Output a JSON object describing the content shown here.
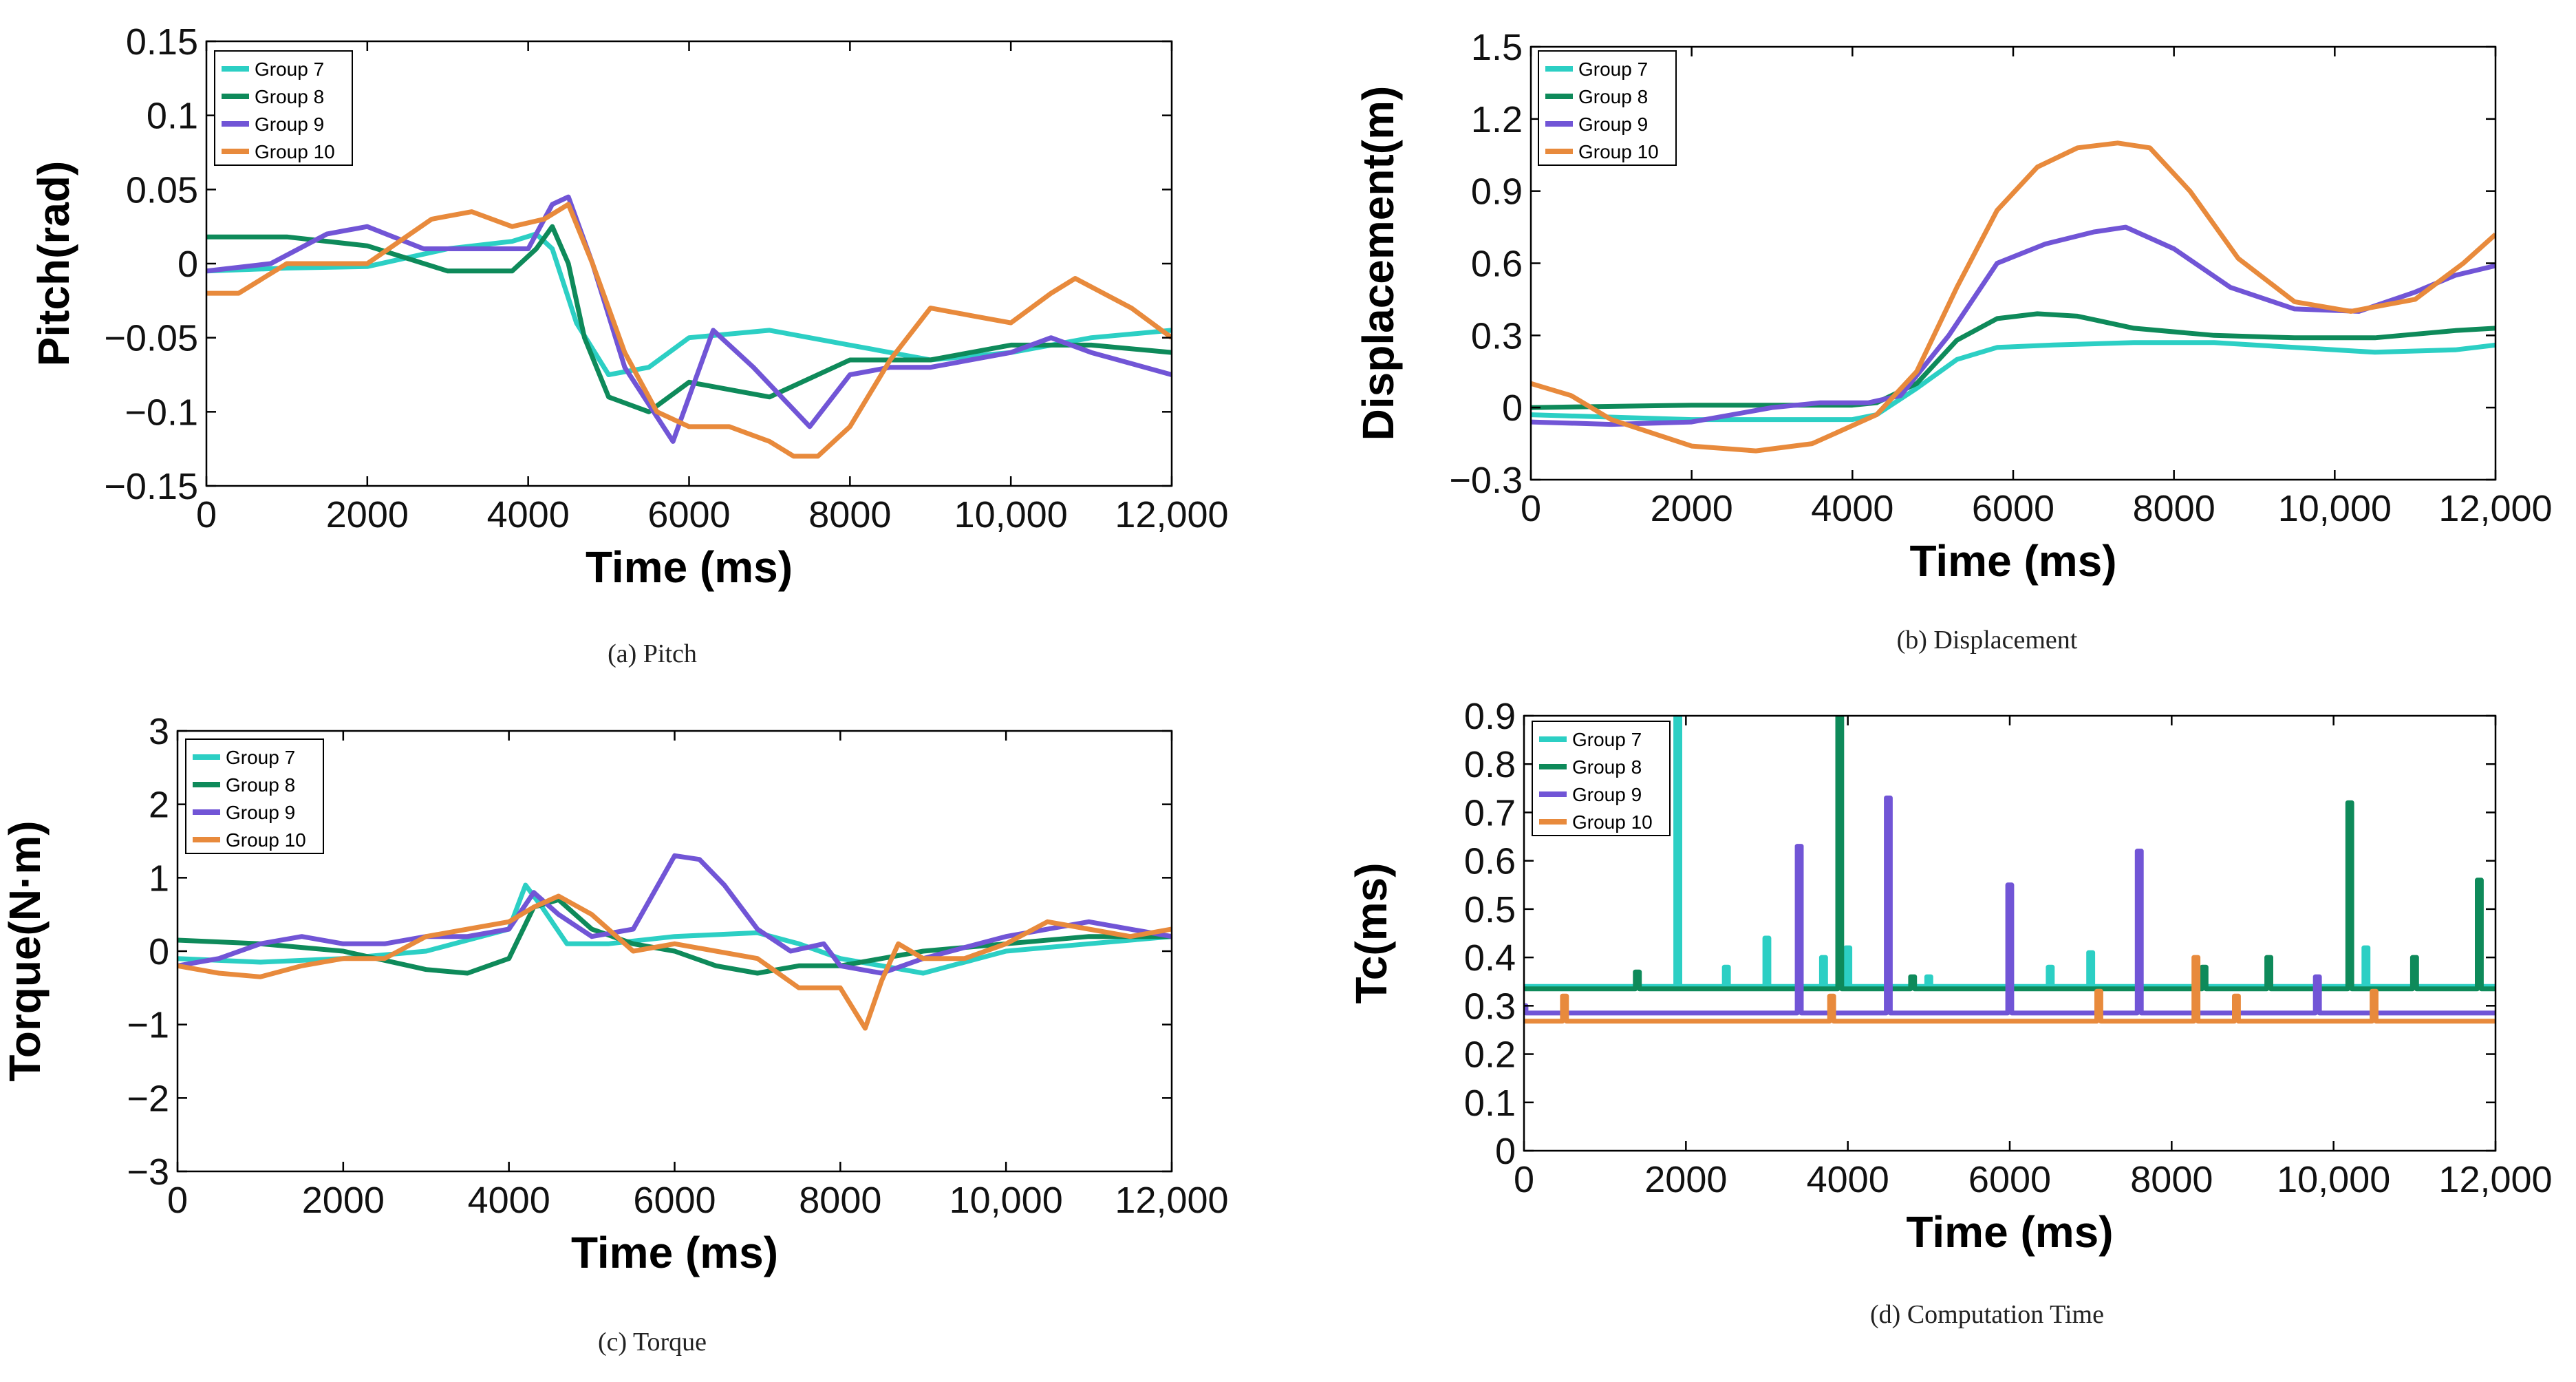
{
  "colors": {
    "Group 7": "#2ccfc4",
    "Group 8": "#0e8a5a",
    "Group 9": "#7155d6",
    "Group 10": "#e88a3c"
  },
  "chart_data": [
    {
      "id": "pitch",
      "type": "line",
      "caption": "(a) Pitch",
      "xlabel": "Time (ms)",
      "ylabel": "Pitch(rad)",
      "xlim": [
        0,
        12000
      ],
      "ylim": [
        -0.15,
        0.15
      ],
      "xticks": [
        0,
        2000,
        4000,
        6000,
        8000,
        10000,
        12000
      ],
      "xtick_labels": [
        "0",
        "2000",
        "4000",
        "6000",
        "8000",
        "10,000",
        "12,000"
      ],
      "yticks": [
        -0.15,
        -0.1,
        -0.05,
        0,
        0.05,
        0.1,
        0.15
      ],
      "ytick_labels": [
        "−0.15",
        "−0.1",
        "−0.05",
        "0",
        "0.05",
        "0.1",
        "0.15"
      ],
      "legend": [
        "Group 7",
        "Group 8",
        "Group 9",
        "Group 10"
      ],
      "series": [
        {
          "name": "Group 7",
          "x": [
            0,
            1000,
            2000,
            3000,
            3800,
            4100,
            4300,
            4600,
            5000,
            5500,
            6000,
            7000,
            8000,
            9000,
            10000,
            11000,
            12000
          ],
          "y": [
            -0.005,
            -0.003,
            -0.002,
            0.01,
            0.015,
            0.02,
            0.01,
            -0.04,
            -0.075,
            -0.07,
            -0.05,
            -0.045,
            -0.055,
            -0.065,
            -0.06,
            -0.05,
            -0.045
          ]
        },
        {
          "name": "Group 8",
          "x": [
            0,
            1000,
            2000,
            3000,
            3800,
            4100,
            4300,
            4500,
            4700,
            5000,
            5500,
            6000,
            7000,
            8000,
            9000,
            10000,
            11000,
            12000
          ],
          "y": [
            0.018,
            0.018,
            0.012,
            -0.005,
            -0.005,
            0.01,
            0.025,
            0.0,
            -0.05,
            -0.09,
            -0.1,
            -0.08,
            -0.09,
            -0.065,
            -0.065,
            -0.055,
            -0.055,
            -0.06
          ]
        },
        {
          "name": "Group 9",
          "x": [
            0,
            800,
            1500,
            2000,
            2700,
            3200,
            4000,
            4300,
            4500,
            4800,
            5200,
            5800,
            6300,
            6800,
            7500,
            8000,
            8500,
            9000,
            10000,
            10500,
            11000,
            12000
          ],
          "y": [
            -0.005,
            0.0,
            0.02,
            0.025,
            0.01,
            0.01,
            0.01,
            0.04,
            0.045,
            0.0,
            -0.07,
            -0.12,
            -0.045,
            -0.07,
            -0.11,
            -0.075,
            -0.07,
            -0.07,
            -0.06,
            -0.05,
            -0.06,
            -0.075
          ]
        },
        {
          "name": "Group 10",
          "x": [
            0,
            400,
            1000,
            2000,
            2800,
            3300,
            3800,
            4200,
            4500,
            4800,
            5200,
            5600,
            6000,
            6500,
            7000,
            7300,
            7600,
            8000,
            8500,
            9000,
            9500,
            10000,
            10500,
            10800,
            11500,
            12000
          ],
          "y": [
            -0.02,
            -0.02,
            0.0,
            0.0,
            0.03,
            0.035,
            0.025,
            0.03,
            0.04,
            0.0,
            -0.06,
            -0.1,
            -0.11,
            -0.11,
            -0.12,
            -0.13,
            -0.13,
            -0.11,
            -0.065,
            -0.03,
            -0.035,
            -0.04,
            -0.02,
            -0.01,
            -0.03,
            -0.05
          ]
        }
      ]
    },
    {
      "id": "displacement",
      "type": "line",
      "caption": "(b) Displacement",
      "xlabel": "Time (ms)",
      "ylabel": "Displacement(m)",
      "xlim": [
        0,
        12000
      ],
      "ylim": [
        -0.3,
        1.5
      ],
      "xticks": [
        0,
        2000,
        4000,
        6000,
        8000,
        10000,
        12000
      ],
      "xtick_labels": [
        "0",
        "2000",
        "4000",
        "6000",
        "8000",
        "10,000",
        "12,000"
      ],
      "yticks": [
        -0.3,
        0,
        0.3,
        0.6,
        0.9,
        1.2,
        1.5
      ],
      "ytick_labels": [
        "−0.3",
        "0",
        "0.3",
        "0.6",
        "0.9",
        "1.2",
        "1.5"
      ],
      "legend": [
        "Group 7",
        "Group 8",
        "Group 9",
        "Group 10"
      ],
      "series": [
        {
          "name": "Group 7",
          "x": [
            0,
            2000,
            4000,
            4300,
            4800,
            5300,
            5800,
            6500,
            7500,
            8500,
            9500,
            10500,
            11500,
            12000
          ],
          "y": [
            -0.03,
            -0.05,
            -0.05,
            -0.03,
            0.08,
            0.2,
            0.25,
            0.26,
            0.27,
            0.27,
            0.25,
            0.23,
            0.24,
            0.26
          ]
        },
        {
          "name": "Group 8",
          "x": [
            0,
            2000,
            4000,
            4300,
            4800,
            5300,
            5800,
            6300,
            6800,
            7500,
            8500,
            9500,
            10500,
            11500,
            12000
          ],
          "y": [
            0.0,
            0.01,
            0.01,
            0.02,
            0.1,
            0.28,
            0.37,
            0.39,
            0.38,
            0.33,
            0.3,
            0.29,
            0.29,
            0.32,
            0.33
          ]
        },
        {
          "name": "Group 9",
          "x": [
            0,
            1000,
            2000,
            3000,
            3600,
            4200,
            4600,
            5200,
            5800,
            6400,
            7000,
            7400,
            8000,
            8700,
            9500,
            10300,
            11000,
            11500,
            12000
          ],
          "y": [
            -0.06,
            -0.07,
            -0.06,
            0.0,
            0.02,
            0.02,
            0.05,
            0.3,
            0.6,
            0.68,
            0.73,
            0.75,
            0.66,
            0.5,
            0.41,
            0.4,
            0.48,
            0.55,
            0.59
          ]
        },
        {
          "name": "Group 10",
          "x": [
            0,
            500,
            1000,
            2000,
            2800,
            3500,
            4300,
            4800,
            5300,
            5800,
            6300,
            6800,
            7300,
            7700,
            8200,
            8800,
            9500,
            10200,
            11000,
            11600,
            12000
          ],
          "y": [
            0.1,
            0.05,
            -0.05,
            -0.16,
            -0.18,
            -0.15,
            -0.03,
            0.15,
            0.5,
            0.82,
            1.0,
            1.08,
            1.1,
            1.08,
            0.9,
            0.62,
            0.44,
            0.4,
            0.45,
            0.6,
            0.72
          ]
        }
      ]
    },
    {
      "id": "torque",
      "type": "line",
      "caption": "(c) Torque",
      "xlabel": "Time (ms)",
      "ylabel": "Torque(N·m)",
      "xlim": [
        0,
        12000
      ],
      "ylim": [
        -3,
        3
      ],
      "xticks": [
        0,
        2000,
        4000,
        6000,
        8000,
        10000,
        12000
      ],
      "xtick_labels": [
        "0",
        "2000",
        "4000",
        "6000",
        "8000",
        "10,000",
        "12,000"
      ],
      "yticks": [
        -3,
        -2,
        -1,
        0,
        1,
        2,
        3
      ],
      "ytick_labels": [
        "−3",
        "−2",
        "−1",
        "0",
        "1",
        "2",
        "3"
      ],
      "legend": [
        "Group 7",
        "Group 8",
        "Group 9",
        "Group 10"
      ],
      "series": [
        {
          "name": "Group 7",
          "x": [
            0,
            1000,
            2000,
            3000,
            4000,
            4200,
            4400,
            4700,
            5200,
            6000,
            7000,
            7500,
            8000,
            8500,
            9000,
            10000,
            11000,
            12000
          ],
          "y": [
            -0.1,
            -0.15,
            -0.1,
            0.0,
            0.3,
            0.9,
            0.6,
            0.1,
            0.1,
            0.2,
            0.25,
            0.1,
            -0.1,
            -0.2,
            -0.3,
            0.0,
            0.1,
            0.2
          ]
        },
        {
          "name": "Group 8",
          "x": [
            0,
            1000,
            2000,
            3000,
            3500,
            4000,
            4300,
            4600,
            5000,
            5500,
            6000,
            6500,
            7000,
            7500,
            8000,
            8500,
            9000,
            10000,
            11000,
            12000
          ],
          "y": [
            0.15,
            0.1,
            0.0,
            -0.25,
            -0.3,
            -0.1,
            0.6,
            0.7,
            0.3,
            0.1,
            0.0,
            -0.2,
            -0.3,
            -0.2,
            -0.2,
            -0.1,
            0.0,
            0.1,
            0.2,
            0.2
          ]
        },
        {
          "name": "Group 9",
          "x": [
            0,
            500,
            1000,
            1500,
            2000,
            2500,
            3000,
            3500,
            4000,
            4300,
            4600,
            5000,
            5500,
            5800,
            6000,
            6300,
            6600,
            7000,
            7400,
            7800,
            8000,
            8500,
            9000,
            10000,
            11000,
            12000
          ],
          "y": [
            -0.2,
            -0.1,
            0.1,
            0.2,
            0.1,
            0.1,
            0.2,
            0.2,
            0.3,
            0.8,
            0.5,
            0.2,
            0.3,
            0.9,
            1.3,
            1.25,
            0.9,
            0.3,
            0.0,
            0.1,
            -0.2,
            -0.3,
            -0.1,
            0.2,
            0.4,
            0.2
          ]
        },
        {
          "name": "Group 10",
          "x": [
            0,
            500,
            1000,
            1500,
            2000,
            2500,
            3000,
            3500,
            4000,
            4300,
            4600,
            5000,
            5500,
            6000,
            6500,
            7000,
            7500,
            8000,
            8300,
            8500,
            8700,
            9000,
            9500,
            10000,
            10500,
            11000,
            11500,
            12000
          ],
          "y": [
            -0.2,
            -0.3,
            -0.35,
            -0.2,
            -0.1,
            -0.1,
            0.2,
            0.3,
            0.4,
            0.6,
            0.75,
            0.5,
            0.0,
            0.1,
            0.0,
            -0.1,
            -0.5,
            -0.5,
            -1.05,
            -0.4,
            0.1,
            -0.1,
            -0.1,
            0.1,
            0.4,
            0.3,
            0.2,
            0.3
          ]
        }
      ]
    },
    {
      "id": "computation_time",
      "type": "line",
      "caption": "(d) Computation Time",
      "xlabel": "Time (ms)",
      "ylabel": "Tc(ms)",
      "xlim": [
        0,
        12000
      ],
      "ylim": [
        0,
        0.9
      ],
      "xticks": [
        0,
        2000,
        4000,
        6000,
        8000,
        10000,
        12000
      ],
      "xtick_labels": [
        "0",
        "2000",
        "4000",
        "6000",
        "8000",
        "10,000",
        "12,000"
      ],
      "yticks": [
        0,
        0.1,
        0.2,
        0.3,
        0.4,
        0.5,
        0.6,
        0.7,
        0.8,
        0.9
      ],
      "ytick_labels": [
        "0",
        "0.1",
        "0.2",
        "0.3",
        "0.4",
        "0.5",
        "0.6",
        "0.7",
        "0.8",
        "0.9"
      ],
      "legend": [
        "Group 7",
        "Group 8",
        "Group 9",
        "Group 10"
      ],
      "series": [
        {
          "name": "Group 7",
          "baseline": 0.34,
          "spikes": [
            [
              1900,
              0.9
            ],
            [
              2500,
              0.38
            ],
            [
              3000,
              0.44
            ],
            [
              3700,
              0.4
            ],
            [
              4000,
              0.42
            ],
            [
              5000,
              0.36
            ],
            [
              6500,
              0.38
            ],
            [
              7000,
              0.41
            ],
            [
              10400,
              0.42
            ]
          ]
        },
        {
          "name": "Group 8",
          "baseline": 0.335,
          "spikes": [
            [
              1400,
              0.37
            ],
            [
              3900,
              0.9
            ],
            [
              4800,
              0.36
            ],
            [
              8400,
              0.38
            ],
            [
              9200,
              0.4
            ],
            [
              10200,
              0.72
            ],
            [
              11000,
              0.4
            ],
            [
              11800,
              0.56
            ]
          ]
        },
        {
          "name": "Group 9",
          "baseline": 0.285,
          "spikes": [
            [
              0,
              0.3
            ],
            [
              3400,
              0.63
            ],
            [
              4500,
              0.73
            ],
            [
              6000,
              0.55
            ],
            [
              7600,
              0.62
            ],
            [
              9800,
              0.36
            ]
          ]
        },
        {
          "name": "Group 10",
          "baseline": 0.268,
          "spikes": [
            [
              500,
              0.32
            ],
            [
              3800,
              0.32
            ],
            [
              7100,
              0.33
            ],
            [
              8300,
              0.4
            ],
            [
              8800,
              0.32
            ],
            [
              10500,
              0.33
            ]
          ]
        }
      ]
    }
  ]
}
